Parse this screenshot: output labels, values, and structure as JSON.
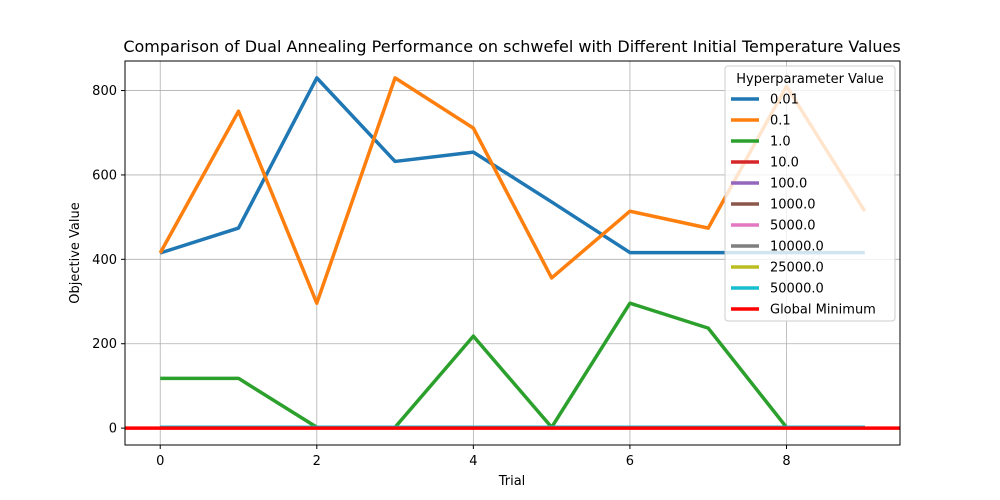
{
  "chart_data": {
    "type": "line",
    "title": "Comparison of Dual Annealing Performance on schwefel with Different Initial Temperature Values",
    "xlabel": "Trial",
    "ylabel": "Objective Value",
    "xlim": [
      -0.45,
      9.45
    ],
    "ylim": [
      -40,
      870
    ],
    "xticks": [
      0,
      2,
      4,
      6,
      8
    ],
    "yticks": [
      0,
      200,
      400,
      600,
      800
    ],
    "grid": true,
    "legend": {
      "title": "Hyperparameter Value",
      "placement": "top-right"
    },
    "x": [
      0,
      1,
      2,
      3,
      4,
      5,
      6,
      7,
      8,
      9
    ],
    "series": [
      {
        "name": "0.01",
        "color": "#1f77b4",
        "values": [
          415,
          474,
          830,
          632,
          654,
          536,
          416,
          416,
          416,
          416
        ]
      },
      {
        "name": "0.1",
        "color": "#ff7f0e",
        "values": [
          415,
          751,
          296,
          830,
          711,
          356,
          514,
          474,
          810,
          514
        ]
      },
      {
        "name": "1.0",
        "color": "#2ca02c",
        "values": [
          118,
          118,
          2,
          2,
          218,
          2,
          296,
          237,
          2,
          2
        ]
      },
      {
        "name": "10.0",
        "color": "#d62728",
        "values": [
          2,
          2,
          2,
          2,
          2,
          2,
          2,
          2,
          2,
          2
        ]
      },
      {
        "name": "100.0",
        "color": "#9467bd",
        "values": [
          2,
          2,
          2,
          2,
          2,
          2,
          2,
          2,
          2,
          2
        ]
      },
      {
        "name": "1000.0",
        "color": "#8c564b",
        "values": [
          2,
          2,
          2,
          2,
          2,
          2,
          2,
          2,
          2,
          2
        ]
      },
      {
        "name": "5000.0",
        "color": "#e377c2",
        "values": [
          2,
          2,
          2,
          2,
          2,
          2,
          2,
          2,
          2,
          2
        ]
      },
      {
        "name": "10000.0",
        "color": "#7f7f7f",
        "values": [
          2,
          2,
          2,
          2,
          2,
          2,
          2,
          2,
          2,
          2
        ]
      },
      {
        "name": "25000.0",
        "color": "#bcbd22",
        "values": [
          2,
          2,
          2,
          2,
          2,
          2,
          2,
          2,
          2,
          2
        ]
      },
      {
        "name": "50000.0",
        "color": "#17becf",
        "values": [
          2,
          2,
          2,
          2,
          2,
          2,
          2,
          2,
          2,
          2
        ]
      }
    ],
    "reference_line": {
      "name": "Global Minimum",
      "color": "#ff0000",
      "y": 0
    }
  }
}
